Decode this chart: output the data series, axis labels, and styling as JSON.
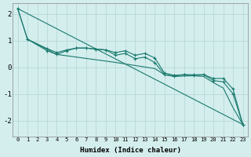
{
  "xlabel": "Humidex (Indice chaleur)",
  "bg_color": "#d4eeee",
  "grid_color": "#b8d8d8",
  "line_color": "#1a7a6e",
  "xlim": [
    -0.5,
    23.5
  ],
  "ylim": [
    -2.6,
    2.4
  ],
  "yticks": [
    -2,
    -1,
    0,
    1,
    2
  ],
  "xticks": [
    0,
    1,
    2,
    3,
    4,
    5,
    6,
    7,
    8,
    9,
    10,
    11,
    12,
    13,
    14,
    15,
    16,
    17,
    18,
    19,
    20,
    21,
    22,
    23
  ],
  "series": [
    {
      "x": [
        0,
        1,
        3,
        4,
        5,
        6,
        7,
        8,
        9,
        10,
        11,
        12,
        13,
        14,
        15,
        16,
        17,
        18,
        19,
        20,
        21,
        22,
        23
      ],
      "y": [
        2.2,
        1.05,
        0.7,
        0.55,
        0.65,
        0.72,
        0.72,
        0.68,
        0.65,
        0.45,
        0.52,
        0.32,
        0.38,
        0.18,
        -0.28,
        -0.33,
        -0.28,
        -0.32,
        -0.28,
        -0.5,
        -0.55,
        -1.0,
        -2.15
      ],
      "marker": true
    },
    {
      "x": [
        1,
        3,
        4,
        5,
        6,
        7,
        8,
        9,
        10,
        11,
        12,
        13,
        14,
        15,
        16,
        17,
        18,
        19,
        20,
        21,
        22,
        23
      ],
      "y": [
        1.05,
        0.62,
        0.48,
        0.62,
        0.72,
        0.72,
        0.68,
        0.65,
        0.55,
        0.62,
        0.45,
        0.52,
        0.35,
        -0.22,
        -0.3,
        -0.28,
        -0.28,
        -0.28,
        -0.42,
        -0.42,
        -0.82,
        -2.15
      ],
      "marker": true
    },
    {
      "x": [
        0,
        23
      ],
      "y": [
        2.2,
        -2.15
      ],
      "marker": false
    },
    {
      "x": [
        0,
        1,
        4,
        10,
        14,
        15,
        16,
        17,
        18,
        19,
        20,
        21,
        22,
        23
      ],
      "y": [
        2.2,
        1.05,
        0.48,
        0.18,
        -0.05,
        -0.28,
        -0.35,
        -0.33,
        -0.32,
        -0.35,
        -0.58,
        -0.78,
        -1.52,
        -2.15
      ],
      "marker": false
    }
  ]
}
